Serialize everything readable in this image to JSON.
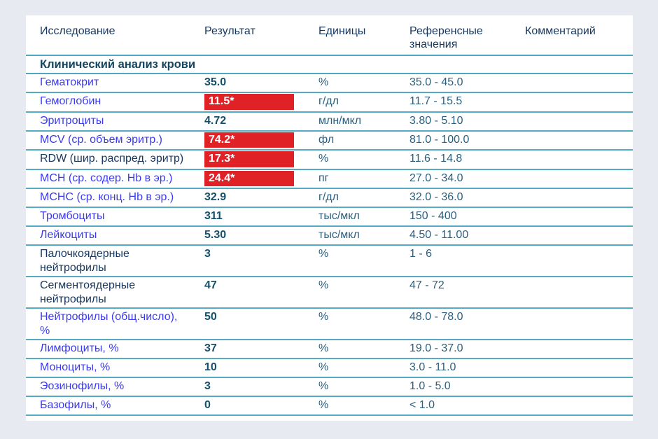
{
  "colors": {
    "page_background": "#e7eaf0",
    "card_background": "#ffffff",
    "separator_line": "#4ea6c0",
    "header_text": "#17375e",
    "test_name_link": "#3a3af0",
    "test_name_dark": "#17375e",
    "result_text": "#14506b",
    "abnormal_background": "#e02227",
    "abnormal_text": "#ffffff",
    "units_reference_text": "#2a5f7e"
  },
  "table": {
    "headers": {
      "test": "Исследование",
      "result": "Результат",
      "units": "Единицы",
      "reference": "Референсные значения",
      "comment": "Комментарий"
    },
    "section_title": "Клинический анализ крови",
    "rows": [
      {
        "name": "Гематокрит",
        "name_color": "link",
        "result": "35.0",
        "abnormal": false,
        "units": "%",
        "reference": "35.0 - 45.0",
        "comment": ""
      },
      {
        "name": "Гемоглобин",
        "name_color": "link",
        "result": "11.5*",
        "abnormal": true,
        "units": "г/дл",
        "reference": "11.7 - 15.5",
        "comment": ""
      },
      {
        "name": "Эритроциты",
        "name_color": "link",
        "result": "4.72",
        "abnormal": false,
        "units": "млн/мкл",
        "reference": "3.80 - 5.10",
        "comment": ""
      },
      {
        "name": "MCV (ср. объем эритр.)",
        "name_color": "link",
        "result": "74.2*",
        "abnormal": true,
        "units": "фл",
        "reference": "81.0 - 100.0",
        "comment": ""
      },
      {
        "name": "RDW (шир. распред. эритр)",
        "name_color": "dark",
        "result": "17.3*",
        "abnormal": true,
        "units": "%",
        "reference": "11.6 - 14.8",
        "comment": ""
      },
      {
        "name": "MCH (ср. содер. Hb в эр.)",
        "name_color": "link",
        "result": "24.4*",
        "abnormal": true,
        "units": "пг",
        "reference": "27.0 - 34.0",
        "comment": ""
      },
      {
        "name": "MCHC (ср. конц. Hb в эр.)",
        "name_color": "link",
        "result": "32.9",
        "abnormal": false,
        "units": "г/дл",
        "reference": "32.0 - 36.0",
        "comment": ""
      },
      {
        "name": "Тромбоциты",
        "name_color": "link",
        "result": "311",
        "abnormal": false,
        "units": "тыс/мкл",
        "reference": "150 - 400",
        "comment": ""
      },
      {
        "name": "Лейкоциты",
        "name_color": "link",
        "result": "5.30",
        "abnormal": false,
        "units": "тыс/мкл",
        "reference": "4.50 - 11.00",
        "comment": ""
      },
      {
        "name": "Палочкоядерные\nнейтрофилы",
        "name_color": "dark",
        "result": "3",
        "abnormal": false,
        "units": "%",
        "reference": "1 - 6",
        "comment": ""
      },
      {
        "name": "Сегментоядерные\nнейтрофилы",
        "name_color": "dark",
        "result": "47",
        "abnormal": false,
        "units": "%",
        "reference": "47 - 72",
        "comment": ""
      },
      {
        "name": "Нейтрофилы (общ.число),\n%",
        "name_color": "link",
        "result": "50",
        "abnormal": false,
        "units": "%",
        "reference": "48.0 - 78.0",
        "comment": ""
      },
      {
        "name": "Лимфоциты, %",
        "name_color": "link",
        "result": "37",
        "abnormal": false,
        "units": "%",
        "reference": "19.0 - 37.0",
        "comment": ""
      },
      {
        "name": "Моноциты, %",
        "name_color": "link",
        "result": "10",
        "abnormal": false,
        "units": "%",
        "reference": "3.0 - 11.0",
        "comment": ""
      },
      {
        "name": "Эозинофилы, %",
        "name_color": "link",
        "result": "3",
        "abnormal": false,
        "units": "%",
        "reference": "1.0 - 5.0",
        "comment": ""
      },
      {
        "name": "Базофилы, %",
        "name_color": "link",
        "result": "0",
        "abnormal": false,
        "units": "%",
        "reference": "< 1.0",
        "comment": ""
      }
    ]
  }
}
